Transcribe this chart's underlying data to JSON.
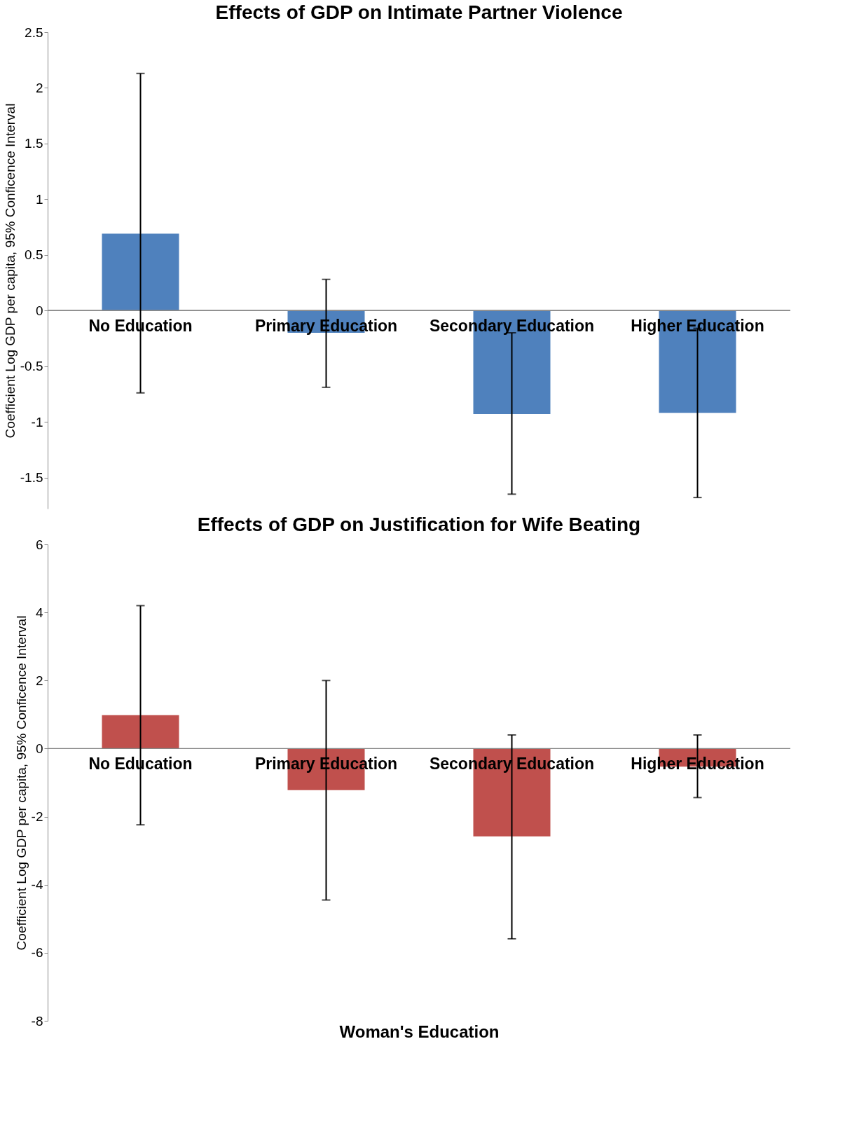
{
  "chart_data": [
    {
      "type": "bar",
      "title": "Effects of GDP on Intimate Partner Violence",
      "ylabel": "Coefficient Log GDP per capita, 95% Conficence Interval",
      "categories": [
        "No Education",
        "Primary Education",
        "Secondary Education",
        "Higher Education"
      ],
      "values": [
        0.69,
        -0.2,
        -0.93,
        -0.92
      ],
      "color": "#4f81bd",
      "errors": [
        [
          -0.74,
          2.13
        ],
        [
          -0.69,
          0.28
        ],
        [
          -1.65,
          -0.2
        ],
        [
          -1.68,
          -0.16
        ]
      ],
      "ylim": [
        -1.78,
        2.5
      ],
      "yticks": [
        -1.5,
        -1,
        -0.5,
        0,
        0.5,
        1,
        1.5,
        2,
        2.5
      ],
      "grid": false
    },
    {
      "type": "bar",
      "title": "Effects of GDP on Justification for Wife Beating",
      "ylabel": "Coefficient Log GDP per capita, 95% Conficence Interval",
      "xlabel": "Woman's Education",
      "categories": [
        "No Education",
        "Primary Education",
        "Secondary Education",
        "Higher Education"
      ],
      "values": [
        0.98,
        -1.22,
        -2.58,
        -0.53
      ],
      "color": "#c0504d",
      "errors": [
        [
          -2.24,
          4.2
        ],
        [
          -4.45,
          2.0
        ],
        [
          -5.59,
          0.4
        ],
        [
          -1.44,
          0.4
        ]
      ],
      "ylim": [
        -8,
        6
      ],
      "yticks": [
        -8,
        -6,
        -4,
        -2,
        0,
        2,
        4,
        6
      ],
      "grid": false
    }
  ]
}
